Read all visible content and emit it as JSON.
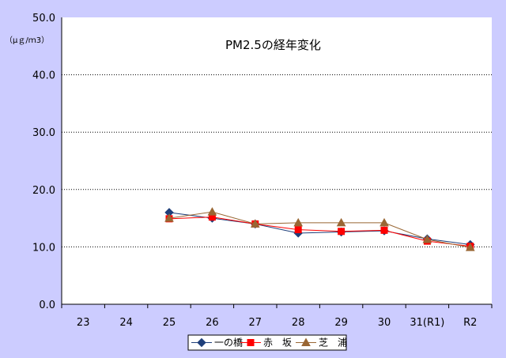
{
  "chart_data": {
    "type": "line",
    "title": "PM2.5の経年変化",
    "unit_label": "（μｇ/ｍ3）",
    "categories": [
      "23",
      "24",
      "25",
      "26",
      "27",
      "28",
      "29",
      "30",
      "31(R1)",
      "R2"
    ],
    "ylim": [
      0,
      50
    ],
    "y_ticks": [
      "0.0",
      "10.0",
      "20.0",
      "30.0",
      "40.0",
      "50.0"
    ],
    "grid": "horizontal dotted",
    "legend_position": "bottom-right",
    "series": [
      {
        "name": "一の橋",
        "color": "#1f3f7a",
        "marker": "diamond",
        "values": [
          null,
          null,
          16.0,
          15.0,
          14.0,
          12.4,
          12.6,
          12.8,
          11.4,
          10.4
        ]
      },
      {
        "name": "赤　坂",
        "color": "#ff0000",
        "marker": "square",
        "values": [
          null,
          null,
          14.9,
          15.2,
          14.0,
          13.0,
          12.7,
          12.9,
          11.0,
          10.1
        ]
      },
      {
        "name": "芝　浦",
        "color": "#996633",
        "marker": "triangle",
        "values": [
          null,
          null,
          15.0,
          16.1,
          14.0,
          14.2,
          14.2,
          14.2,
          11.3,
          9.9
        ]
      }
    ]
  }
}
